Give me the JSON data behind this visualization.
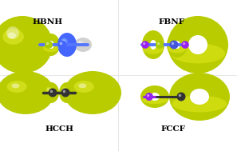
{
  "bg": "#ffffff",
  "yg": "#b8cc00",
  "yg_light": "#d4e000",
  "yg_dark": "#8a9900",
  "blue": "#4466ff",
  "blue_dark": "#2233cc",
  "purple": "#9933dd",
  "purple2": "#7722bb",
  "dark": "#333333",
  "mid_gray": "#555555",
  "light_gray": "#cccccc",
  "white": "#ffffff",
  "bond_dark": "#444444",
  "bond_blue": "#5577ff",
  "labels": [
    "HCCH",
    "FCCF",
    "HBNH",
    "FBNF"
  ],
  "font_size": 7.5
}
